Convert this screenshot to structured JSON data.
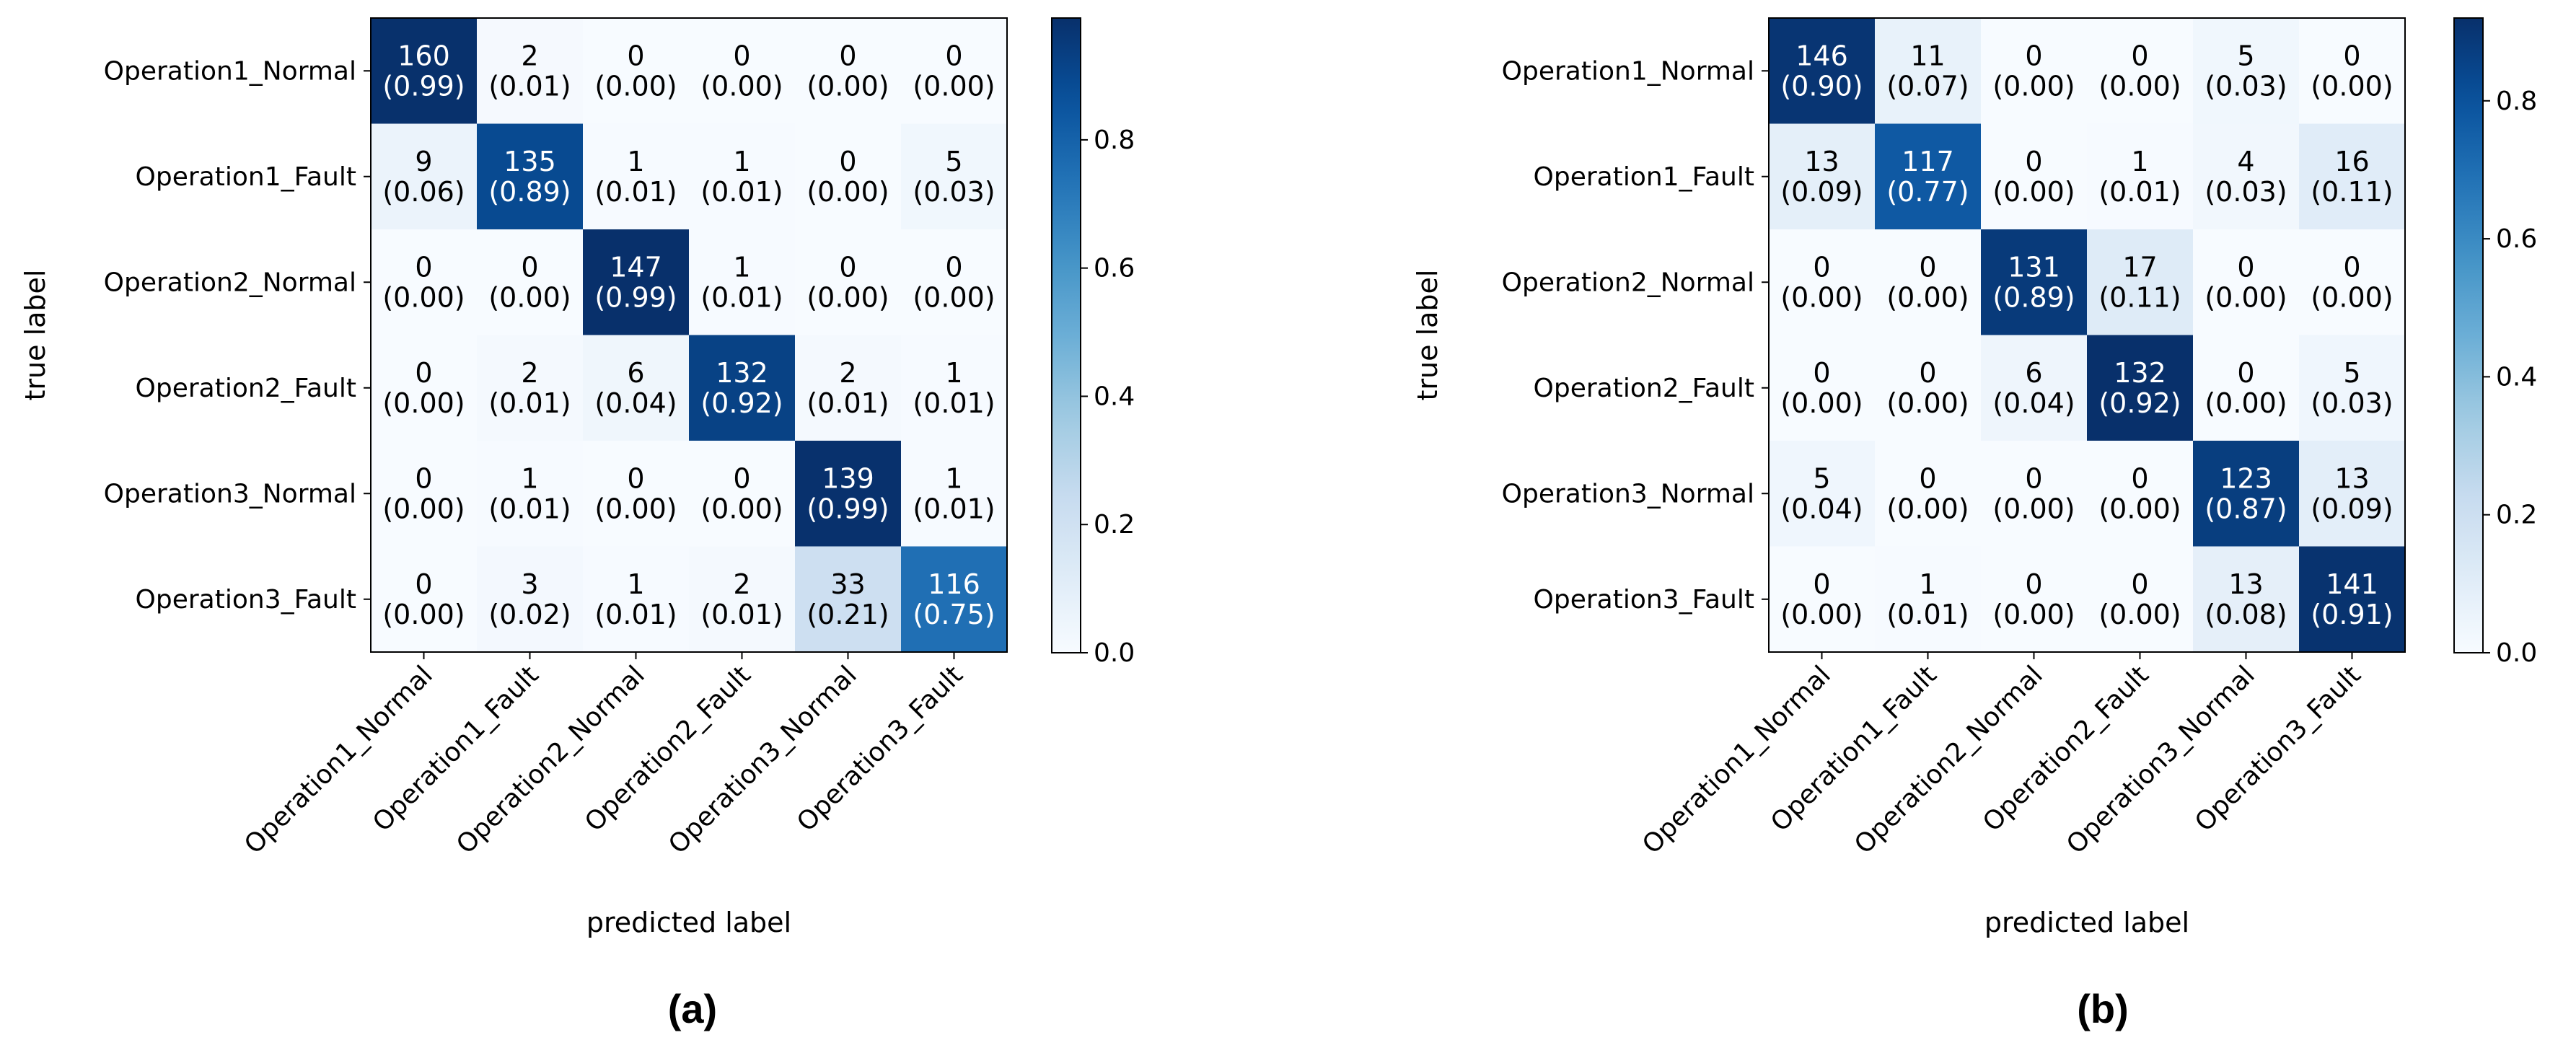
{
  "chart_data": [
    {
      "type": "heatmap",
      "panel_label": "(a)",
      "row_labels": [
        "Operation1_Normal",
        "Operation1_Fault",
        "Operation2_Normal",
        "Operation2_Fault",
        "Operation3_Normal",
        "Operation3_Fault"
      ],
      "col_labels": [
        "Operation1_Normal",
        "Operation1_Fault",
        "Operation2_Normal",
        "Operation2_Fault",
        "Operation3_Normal",
        "Operation3_Fault"
      ],
      "counts": [
        [
          160,
          2,
          0,
          0,
          0,
          0
        ],
        [
          9,
          135,
          1,
          1,
          0,
          5
        ],
        [
          0,
          0,
          147,
          1,
          0,
          0
        ],
        [
          0,
          2,
          6,
          132,
          2,
          1
        ],
        [
          0,
          1,
          0,
          0,
          139,
          1
        ],
        [
          0,
          3,
          1,
          2,
          33,
          116
        ]
      ],
      "fractions": [
        [
          "(0.99)",
          "(0.01)",
          "(0.00)",
          "(0.00)",
          "(0.00)",
          "(0.00)"
        ],
        [
          "(0.06)",
          "(0.89)",
          "(0.01)",
          "(0.01)",
          "(0.00)",
          "(0.03)"
        ],
        [
          "(0.00)",
          "(0.00)",
          "(0.99)",
          "(0.01)",
          "(0.00)",
          "(0.00)"
        ],
        [
          "(0.00)",
          "(0.01)",
          "(0.04)",
          "(0.92)",
          "(0.01)",
          "(0.01)"
        ],
        [
          "(0.00)",
          "(0.01)",
          "(0.00)",
          "(0.00)",
          "(0.99)",
          "(0.01)"
        ],
        [
          "(0.00)",
          "(0.02)",
          "(0.01)",
          "(0.01)",
          "(0.21)",
          "(0.75)"
        ]
      ],
      "xlabel": "predicted label",
      "ylabel": "true label",
      "colorbar": {
        "min": 0.0,
        "max": 0.99,
        "ticks": [
          "0.0",
          "0.2",
          "0.4",
          "0.6",
          "0.8"
        ]
      }
    },
    {
      "type": "heatmap",
      "panel_label": "(b)",
      "row_labels": [
        "Operation1_Normal",
        "Operation1_Fault",
        "Operation2_Normal",
        "Operation2_Fault",
        "Operation3_Normal",
        "Operation3_Fault"
      ],
      "col_labels": [
        "Operation1_Normal",
        "Operation1_Fault",
        "Operation2_Normal",
        "Operation2_Fault",
        "Operation3_Normal",
        "Operation3_Fault"
      ],
      "counts": [
        [
          146,
          11,
          0,
          0,
          5,
          0
        ],
        [
          13,
          117,
          0,
          1,
          4,
          16
        ],
        [
          0,
          0,
          131,
          17,
          0,
          0
        ],
        [
          0,
          0,
          6,
          132,
          0,
          5
        ],
        [
          5,
          0,
          0,
          0,
          123,
          13
        ],
        [
          0,
          1,
          0,
          0,
          13,
          141
        ]
      ],
      "fractions": [
        [
          "(0.90)",
          "(0.07)",
          "(0.00)",
          "(0.00)",
          "(0.03)",
          "(0.00)"
        ],
        [
          "(0.09)",
          "(0.77)",
          "(0.00)",
          "(0.01)",
          "(0.03)",
          "(0.11)"
        ],
        [
          "(0.00)",
          "(0.00)",
          "(0.89)",
          "(0.11)",
          "(0.00)",
          "(0.00)"
        ],
        [
          "(0.00)",
          "(0.00)",
          "(0.04)",
          "(0.92)",
          "(0.00)",
          "(0.03)"
        ],
        [
          "(0.04)",
          "(0.00)",
          "(0.00)",
          "(0.00)",
          "(0.87)",
          "(0.09)"
        ],
        [
          "(0.00)",
          "(0.01)",
          "(0.00)",
          "(0.00)",
          "(0.08)",
          "(0.91)"
        ]
      ],
      "xlabel": "predicted label",
      "ylabel": "true label",
      "colorbar": {
        "min": 0.0,
        "max": 0.92,
        "ticks": [
          "0.0",
          "0.2",
          "0.4",
          "0.6",
          "0.8"
        ]
      }
    }
  ]
}
